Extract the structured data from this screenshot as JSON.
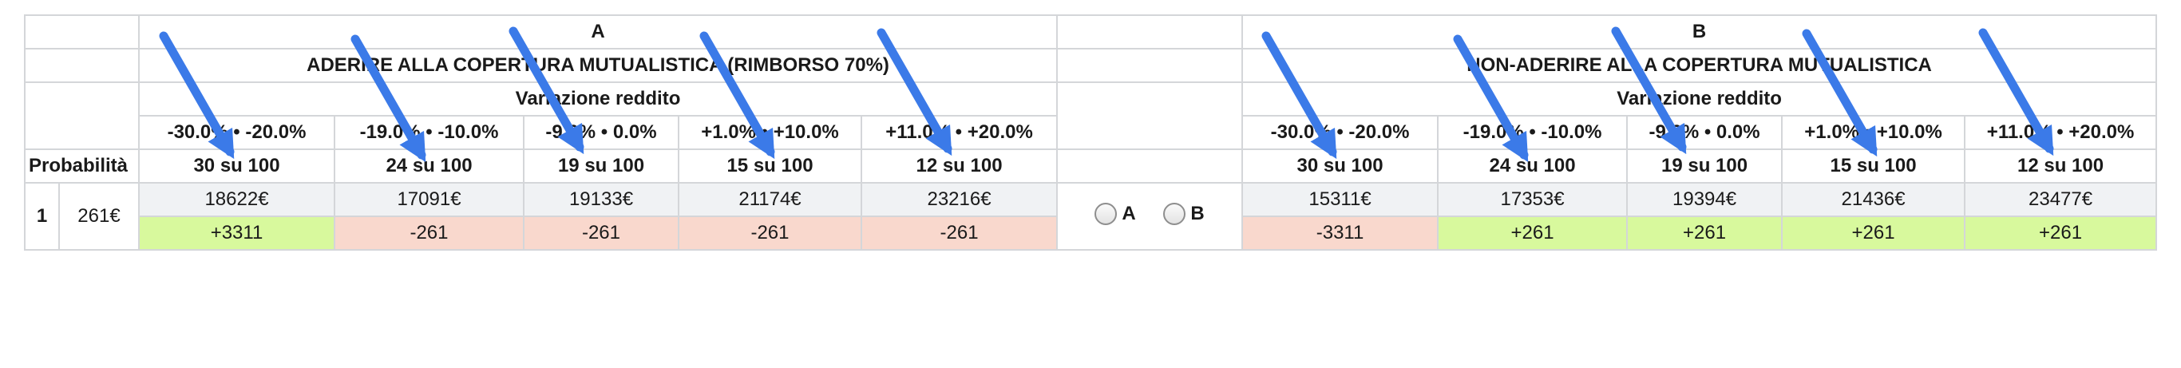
{
  "option_a": {
    "letter": "A",
    "title": "ADERIRE ALLA COPERTURA MUTUALISTICA (RIMBORSO 70%)",
    "subtitle": "Variazione reddito",
    "ranges": [
      "-30.0% • -20.0%",
      "-19.0% • -10.0%",
      "-9.0% • 0.0%",
      "+1.0% • +10.0%",
      "+11.0% • +20.0%"
    ],
    "probabilities": [
      "30 su 100",
      "24 su 100",
      "19 su 100",
      "15 su 100",
      "12 su 100"
    ],
    "values": [
      "18622€",
      "17091€",
      "19133€",
      "21174€",
      "23216€"
    ],
    "diffs": [
      "+3311",
      "-261",
      "-261",
      "-261",
      "-261"
    ]
  },
  "option_b": {
    "letter": "B",
    "title": "NON-ADERIRE ALLA COPERTURA MUTUALISTICA",
    "subtitle": "Variazione reddito",
    "ranges": [
      "-30.0% • -20.0%",
      "-19.0% • -10.0%",
      "-9.0% • 0.0%",
      "+1.0% • +10.0%",
      "+11.0% • +20.0%"
    ],
    "probabilities": [
      "30 su 100",
      "24 su 100",
      "19 su 100",
      "15 su 100",
      "12 su 100"
    ],
    "values": [
      "15311€",
      "17353€",
      "19394€",
      "21436€",
      "23477€"
    ],
    "diffs": [
      "-3311",
      "+261",
      "+261",
      "+261",
      "+261"
    ]
  },
  "row": {
    "index": "1",
    "premium": "261€"
  },
  "labels": {
    "probability": "Probabilità"
  },
  "choices": {
    "a_label": "A",
    "b_label": "B"
  },
  "colors": {
    "gain": "#d8f99d",
    "loss": "#f9d8cd",
    "value_bg": "#f0f2f4",
    "arrow": "#3b7ae8"
  }
}
